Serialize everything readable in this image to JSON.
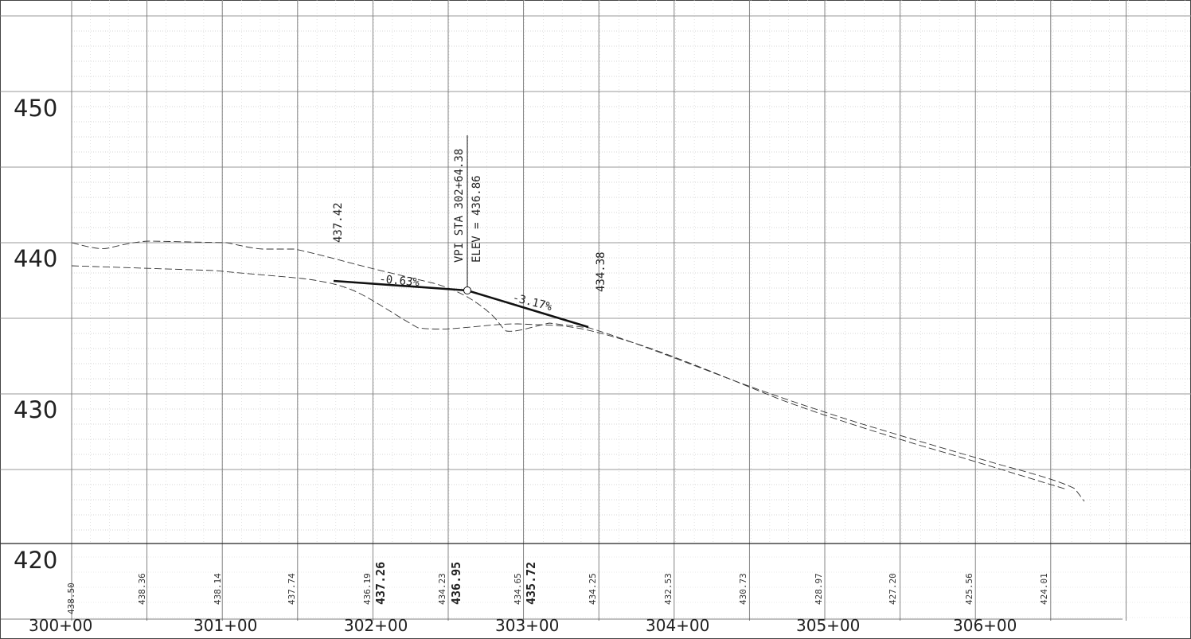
{
  "drawing": {
    "elevation_labels": [
      "450",
      "440",
      "430",
      "420"
    ],
    "station_labels": [
      "300+00",
      "301+00",
      "302+00",
      "303+00",
      "304+00",
      "305+00",
      "306+00"
    ],
    "existing_ground_elevations": [
      "438.50",
      "438.36",
      "438.14",
      "437.74",
      "436.19",
      "434.23",
      "434.65",
      "434.25",
      "432.53",
      "430.73",
      "428.97",
      "427.20",
      "425.56",
      "424.01"
    ],
    "proposed_grade_elevations": [
      "437.26",
      "436.95",
      "435.72"
    ],
    "vpi": {
      "station_text": "VPI STA 302+64.38",
      "elevation_text": "ELEV = 436.86",
      "station": "302+64.38",
      "elevation": 436.86
    },
    "grade_left_text": "437.42",
    "grade_right_text": "434.38",
    "grade_in_label": "-0.63%",
    "grade_out_label": "-3.17%",
    "line_color": "#111111",
    "grid_color": "#9a9a9a"
  }
}
